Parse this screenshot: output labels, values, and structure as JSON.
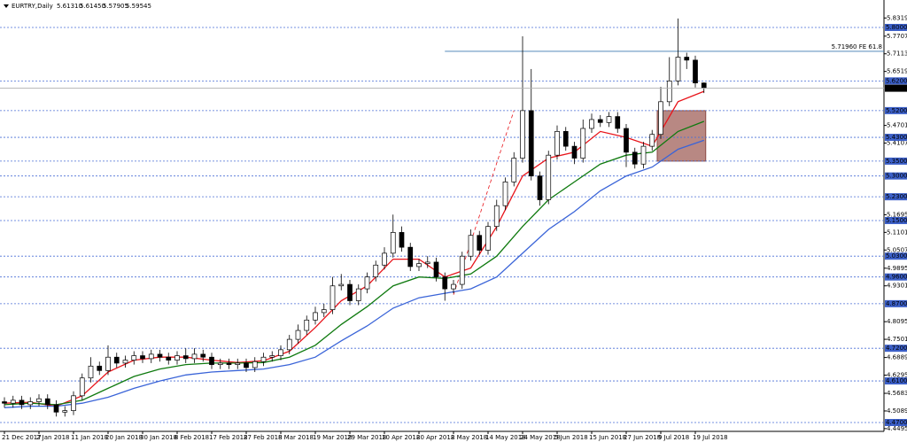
{
  "chart_data": {
    "type": "candlestick",
    "symbol": "EURTRY,Daily",
    "ohlc_labels": [
      "5.61310",
      "5.61450",
      "5.57905",
      "5.59545"
    ],
    "categories": [
      "21 Dec 2017",
      null,
      null,
      null,
      "2 Jan 2018",
      null,
      null,
      null,
      "11 Jan 2018",
      null,
      null,
      null,
      "20 Jan 2018",
      null,
      null,
      null,
      "30 Jan 2018",
      null,
      null,
      null,
      "8 Feb 2018",
      null,
      null,
      null,
      "17 Feb 2018",
      null,
      null,
      null,
      "27 Feb 2018",
      null,
      null,
      null,
      "8 Mar 2018",
      null,
      null,
      null,
      "19 Mar 2018",
      null,
      null,
      null,
      "29 Mar 2018",
      null,
      null,
      null,
      "10 Apr 2018",
      null,
      null,
      null,
      "20 Apr 2018",
      null,
      null,
      null,
      "2 May 2018",
      null,
      null,
      null,
      "14 May 2018",
      null,
      null,
      null,
      "24 May 2018",
      null,
      null,
      null,
      "5 Jun 2018",
      null,
      null,
      null,
      "15 Jun 2018",
      null,
      null,
      null,
      "27 Jun 2018",
      null,
      null,
      null,
      "9 Jul 2018",
      null,
      null,
      null,
      "19 Jul 2018",
      null
    ],
    "open": [
      4.54,
      4.535,
      4.545,
      4.53,
      4.54,
      4.55,
      4.53,
      4.505,
      4.51,
      4.56,
      4.62,
      4.66,
      4.645,
      4.69,
      4.67,
      4.68,
      4.695,
      4.685,
      4.7,
      4.69,
      4.68,
      4.695,
      4.685,
      4.7,
      4.69,
      4.665,
      4.67,
      4.665,
      4.67,
      4.655,
      4.675,
      4.69,
      4.695,
      4.715,
      4.75,
      4.78,
      4.815,
      4.84,
      4.85,
      4.93,
      4.935,
      4.88,
      4.92,
      4.96,
      5.0,
      5.04,
      5.11,
      5.06,
      4.995,
      5.005,
      5.01,
      4.96,
      4.92,
      4.935,
      5.03,
      5.1,
      5.05,
      5.13,
      5.2,
      5.28,
      5.36,
      5.52,
      5.3,
      5.22,
      5.37,
      5.45,
      5.4,
      5.36,
      5.46,
      5.49,
      5.48,
      5.5,
      5.46,
      5.38,
      5.34,
      5.4,
      5.44,
      5.55,
      5.62,
      5.7,
      5.69,
      5.6131
    ],
    "high": [
      4.555,
      4.56,
      4.56,
      4.555,
      4.565,
      4.565,
      4.545,
      4.525,
      4.575,
      4.635,
      4.69,
      4.675,
      4.73,
      4.705,
      4.695,
      4.71,
      4.71,
      4.715,
      4.715,
      4.705,
      4.71,
      4.72,
      4.72,
      4.715,
      4.705,
      4.685,
      4.685,
      4.685,
      4.685,
      4.69,
      4.705,
      4.71,
      4.73,
      4.765,
      4.8,
      4.83,
      4.86,
      4.87,
      4.96,
      4.97,
      4.95,
      4.935,
      4.975,
      5.015,
      5.06,
      5.17,
      5.13,
      5.075,
      5.02,
      5.03,
      5.025,
      4.975,
      4.95,
      5.045,
      5.12,
      5.115,
      5.145,
      5.22,
      5.295,
      5.38,
      5.77,
      5.66,
      5.315,
      5.385,
      5.47,
      5.465,
      5.415,
      5.49,
      5.51,
      5.505,
      5.515,
      5.515,
      5.475,
      5.395,
      5.415,
      5.455,
      5.6,
      5.7,
      5.83,
      5.715,
      5.705,
      5.6145
    ],
    "low": [
      4.52,
      4.52,
      4.515,
      4.515,
      4.525,
      4.515,
      4.49,
      4.49,
      4.495,
      4.545,
      4.605,
      4.63,
      4.63,
      4.655,
      4.655,
      4.665,
      4.67,
      4.67,
      4.675,
      4.665,
      4.665,
      4.67,
      4.67,
      4.675,
      4.65,
      4.65,
      4.65,
      4.65,
      4.64,
      4.64,
      4.66,
      4.675,
      4.68,
      4.7,
      4.735,
      4.765,
      4.8,
      4.825,
      4.835,
      4.915,
      4.865,
      4.865,
      4.905,
      4.945,
      4.985,
      5.025,
      5.045,
      4.98,
      4.98,
      4.99,
      4.945,
      4.88,
      4.905,
      4.92,
      5.015,
      5.035,
      5.035,
      5.115,
      5.185,
      5.265,
      5.345,
      5.285,
      5.2,
      5.205,
      5.355,
      5.385,
      5.34,
      5.345,
      5.445,
      5.465,
      5.465,
      5.445,
      5.33,
      5.325,
      5.325,
      5.385,
      5.425,
      5.535,
      5.605,
      5.66,
      5.598,
      5.57905
    ],
    "close": [
      4.535,
      4.545,
      4.53,
      4.54,
      4.55,
      4.53,
      4.505,
      4.51,
      4.56,
      4.62,
      4.66,
      4.645,
      4.69,
      4.67,
      4.68,
      4.695,
      4.685,
      4.7,
      4.69,
      4.68,
      4.695,
      4.685,
      4.7,
      4.69,
      4.665,
      4.67,
      4.665,
      4.67,
      4.655,
      4.675,
      4.69,
      4.695,
      4.715,
      4.75,
      4.78,
      4.815,
      4.84,
      4.85,
      4.93,
      4.935,
      4.88,
      4.92,
      4.96,
      5.0,
      5.04,
      5.11,
      5.06,
      4.995,
      5.005,
      5.01,
      4.96,
      4.92,
      4.935,
      5.03,
      5.1,
      5.05,
      5.13,
      5.2,
      5.28,
      5.36,
      5.52,
      5.3,
      5.22,
      5.37,
      5.45,
      5.4,
      5.36,
      5.46,
      5.49,
      5.48,
      5.5,
      5.46,
      5.38,
      5.34,
      5.4,
      5.44,
      5.55,
      5.62,
      5.7,
      5.69,
      5.6131,
      5.59545
    ],
    "up_color": "#ffffff",
    "down_color": "#000000",
    "series": [
      {
        "color": "#e8141a",
        "x": [
          0,
          3,
          6,
          9,
          12,
          15,
          18,
          21,
          24,
          27,
          30,
          33,
          36,
          39,
          42,
          45,
          48,
          51,
          54,
          57,
          60,
          63,
          66,
          69,
          72,
          75,
          78,
          81
        ],
        "values": [
          4.535,
          4.538,
          4.525,
          4.56,
          4.64,
          4.68,
          4.69,
          4.69,
          4.68,
          4.672,
          4.678,
          4.71,
          4.79,
          4.88,
          4.93,
          5.02,
          5.02,
          4.96,
          4.99,
          5.13,
          5.3,
          5.36,
          5.38,
          5.45,
          5.43,
          5.4,
          5.55,
          5.585
        ]
      },
      {
        "color": "#0f7a0f",
        "x": [
          0,
          3,
          6,
          9,
          12,
          15,
          18,
          21,
          24,
          27,
          30,
          33,
          36,
          39,
          42,
          45,
          48,
          51,
          54,
          57,
          60,
          63,
          66,
          69,
          72,
          75,
          78,
          81
        ],
        "values": [
          4.53,
          4.535,
          4.53,
          4.545,
          4.585,
          4.625,
          4.65,
          4.665,
          4.67,
          4.67,
          4.672,
          4.69,
          4.73,
          4.8,
          4.86,
          4.93,
          4.96,
          4.955,
          4.97,
          5.03,
          5.13,
          5.22,
          5.28,
          5.34,
          5.37,
          5.38,
          5.45,
          5.484
        ]
      },
      {
        "color": "#3a64d8",
        "x": [
          0,
          3,
          6,
          9,
          12,
          15,
          18,
          21,
          24,
          27,
          30,
          33,
          36,
          39,
          42,
          45,
          48,
          51,
          54,
          57,
          60,
          63,
          66,
          69,
          72,
          75,
          78,
          81
        ],
        "values": [
          4.52,
          4.525,
          4.525,
          4.535,
          4.555,
          4.585,
          4.61,
          4.63,
          4.64,
          4.645,
          4.65,
          4.665,
          4.69,
          4.745,
          4.795,
          4.855,
          4.89,
          4.905,
          4.92,
          4.96,
          5.04,
          5.12,
          5.18,
          5.25,
          5.3,
          5.33,
          5.39,
          5.42
        ]
      }
    ],
    "ylim": [
      4.4402,
      5.8924
    ],
    "yticks": [
      {
        "value": 5.8319,
        "label": "5.83190"
      },
      {
        "value": 5.7707,
        "label": "5.77070"
      },
      {
        "value": 5.7113,
        "label": "5.71130"
      },
      {
        "value": 5.6519,
        "label": "5.65190"
      },
      {
        "value": 5.4701,
        "label": "5.47010"
      },
      {
        "value": 5.4107,
        "label": "5.41070"
      },
      {
        "value": 5.1695,
        "label": "5.16950"
      },
      {
        "value": 5.1101,
        "label": "5.11010"
      },
      {
        "value": 5.0507,
        "label": "5.05070"
      },
      {
        "value": 4.9895,
        "label": "4.98950"
      },
      {
        "value": 4.9301,
        "label": "4.93010"
      },
      {
        "value": 4.8095,
        "label": "4.80950"
      },
      {
        "value": 4.7501,
        "label": "4.75010"
      },
      {
        "value": 4.6889,
        "label": "4.68890"
      },
      {
        "value": 4.6295,
        "label": "4.62950"
      },
      {
        "value": 4.5683,
        "label": "4.56830"
      },
      {
        "value": 4.5089,
        "label": "4.50890"
      },
      {
        "value": 4.4495,
        "label": "4.44950"
      }
    ],
    "levels": [
      {
        "value": 5.8,
        "label": "5.80000"
      },
      {
        "value": 5.62,
        "label": "5.62000"
      },
      {
        "value": 5.52,
        "label": "5.52000"
      },
      {
        "value": 5.43,
        "label": "5.43000"
      },
      {
        "value": 5.35,
        "label": "5.35000"
      },
      {
        "value": 5.3,
        "label": "5.30000"
      },
      {
        "value": 5.23,
        "label": "5.23000"
      },
      {
        "value": 5.15,
        "label": "5.15000"
      },
      {
        "value": 5.03,
        "label": "5.03000"
      },
      {
        "value": 4.96,
        "label": "4.96000"
      },
      {
        "value": 4.87,
        "label": "4.87000"
      },
      {
        "value": 4.72,
        "label": "4.72000"
      },
      {
        "value": 4.61,
        "label": "4.61000"
      },
      {
        "value": 4.47,
        "label": "4.47000"
      }
    ],
    "last_price_label": "5.59545",
    "fib": {
      "value": 5.7196,
      "label": "5.71960 FE 61.8"
    },
    "zone": [
      5.35,
      5.52
    ],
    "trendline": {
      "x": [
        52,
        59
      ],
      "values": [
        4.9,
        5.52
      ]
    }
  }
}
